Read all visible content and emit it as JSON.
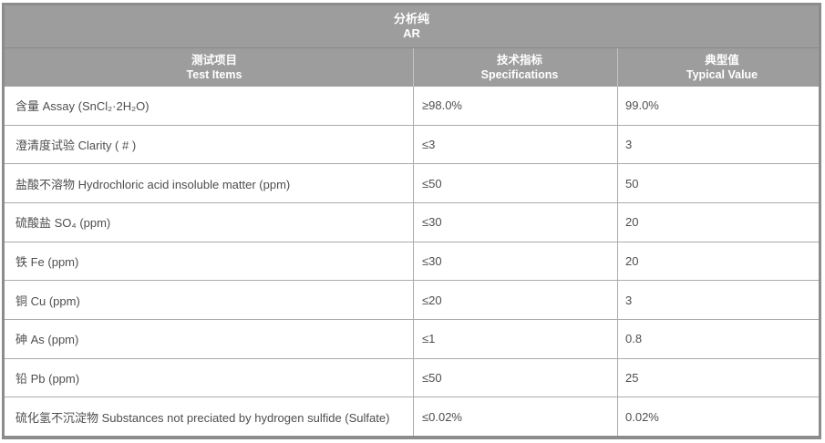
{
  "table": {
    "title_line1": "分析纯",
    "title_line2": "AR",
    "columns": [
      {
        "zh": "测试项目",
        "en": "Test Items"
      },
      {
        "zh": "技术指标",
        "en": "Specifications"
      },
      {
        "zh": "典型值",
        "en": "Typical Value"
      }
    ],
    "rows": [
      {
        "item": "含量  Assay (SnCl₂·2H₂O)",
        "spec": "≥98.0%",
        "typical": "99.0%"
      },
      {
        "item": "澄清度试验  Clarity ( # )",
        "spec": "≤3",
        "typical": "3"
      },
      {
        "item": "盐酸不溶物  Hydrochloric acid insoluble matter (ppm)",
        "spec": "≤50",
        "typical": "50"
      },
      {
        "item": "硫酸盐  SO₄ (ppm)",
        "spec": "≤30",
        "typical": "20"
      },
      {
        "item": "铁  Fe (ppm)",
        "spec": "≤30",
        "typical": "20"
      },
      {
        "item": "铜  Cu (ppm)",
        "spec": "≤20",
        "typical": "3"
      },
      {
        "item": "砷  As (ppm)",
        "spec": "≤1",
        "typical": "0.8"
      },
      {
        "item": "铅  Pb (ppm)",
        "spec": "≤50",
        "typical": "25"
      },
      {
        "item": "硫化氢不沉淀物  Substances not preciated by hydrogen sulfide (Sulfate)",
        "spec": "≤0.02%",
        "typical": "0.02%"
      }
    ],
    "colors": {
      "header_bg": "#9d9d9d",
      "frame_border": "#8c8c8c",
      "body_border": "#ababab",
      "header_text": "#ffffff",
      "body_text": "#4e4e4e"
    }
  }
}
